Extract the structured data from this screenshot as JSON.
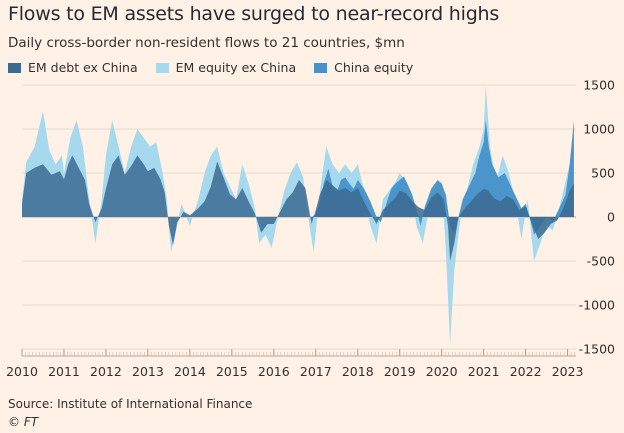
{
  "title": "Flows to EM assets have surged to near-record highs",
  "subtitle": "Daily cross-border non-resident flows to 21 countries, $mn",
  "source": "Source: Institute of International Finance",
  "credit": "© FT",
  "chart_data": {
    "type": "area",
    "title": "Flows to EM assets have surged to near-record highs",
    "subtitle": "Daily cross-border non-resident flows to 21 countries, $mn",
    "xlabel": "",
    "ylabel": "",
    "xlim": [
      2010.0,
      2023.2
    ],
    "ylim": [
      -1500,
      1500
    ],
    "yticks": [
      1500,
      1000,
      500,
      0,
      -500,
      -1000,
      -1500
    ],
    "ytick_labels": [
      "1500",
      "1000",
      "500",
      "0",
      "-500",
      "-1000",
      "-1500"
    ],
    "xticks": [
      2010,
      2011,
      2012,
      2013,
      2014,
      2015,
      2016,
      2017,
      2018,
      2019,
      2020,
      2021,
      2022,
      2023
    ],
    "xtick_labels": [
      "2010",
      "2011",
      "2012",
      "2013",
      "2014",
      "2015",
      "2016",
      "2017",
      "2018",
      "2019",
      "2020",
      "2021",
      "2022",
      "2023"
    ],
    "grid": true,
    "legend_position": "top",
    "series": [
      {
        "name": "EM debt ex China",
        "color": "#3B6A92",
        "points": [
          [
            2010.0,
            150
          ],
          [
            2010.1,
            500
          ],
          [
            2010.3,
            560
          ],
          [
            2010.5,
            600
          ],
          [
            2010.7,
            480
          ],
          [
            2010.9,
            520
          ],
          [
            2011.0,
            430
          ],
          [
            2011.1,
            600
          ],
          [
            2011.2,
            700
          ],
          [
            2011.35,
            560
          ],
          [
            2011.5,
            420
          ],
          [
            2011.6,
            150
          ],
          [
            2011.75,
            -60
          ],
          [
            2011.9,
            100
          ],
          [
            2012.0,
            320
          ],
          [
            2012.15,
            600
          ],
          [
            2012.3,
            700
          ],
          [
            2012.45,
            480
          ],
          [
            2012.6,
            580
          ],
          [
            2012.75,
            700
          ],
          [
            2012.9,
            600
          ],
          [
            2013.0,
            520
          ],
          [
            2013.15,
            560
          ],
          [
            2013.3,
            430
          ],
          [
            2013.4,
            280
          ],
          [
            2013.5,
            -100
          ],
          [
            2013.6,
            -320
          ],
          [
            2013.7,
            -60
          ],
          [
            2013.85,
            60
          ],
          [
            2014.0,
            20
          ],
          [
            2014.2,
            100
          ],
          [
            2014.35,
            180
          ],
          [
            2014.5,
            350
          ],
          [
            2014.65,
            630
          ],
          [
            2014.8,
            450
          ],
          [
            2014.95,
            260
          ],
          [
            2015.1,
            200
          ],
          [
            2015.25,
            330
          ],
          [
            2015.4,
            180
          ],
          [
            2015.55,
            40
          ],
          [
            2015.7,
            -180
          ],
          [
            2015.85,
            -80
          ],
          [
            2016.0,
            -80
          ],
          [
            2016.15,
            60
          ],
          [
            2016.3,
            200
          ],
          [
            2016.45,
            280
          ],
          [
            2016.6,
            420
          ],
          [
            2016.75,
            330
          ],
          [
            2016.9,
            -80
          ],
          [
            2017.0,
            80
          ],
          [
            2017.1,
            260
          ],
          [
            2017.25,
            420
          ],
          [
            2017.4,
            360
          ],
          [
            2017.55,
            300
          ],
          [
            2017.7,
            330
          ],
          [
            2017.85,
            280
          ],
          [
            2018.0,
            330
          ],
          [
            2018.15,
            170
          ],
          [
            2018.3,
            40
          ],
          [
            2018.45,
            -80
          ],
          [
            2018.6,
            80
          ],
          [
            2018.75,
            150
          ],
          [
            2018.9,
            220
          ],
          [
            2019.0,
            300
          ],
          [
            2019.15,
            270
          ],
          [
            2019.3,
            180
          ],
          [
            2019.45,
            110
          ],
          [
            2019.6,
            80
          ],
          [
            2019.75,
            220
          ],
          [
            2019.9,
            280
          ],
          [
            2020.05,
            200
          ],
          [
            2020.15,
            -100
          ],
          [
            2020.2,
            -500
          ],
          [
            2020.3,
            -300
          ],
          [
            2020.4,
            0
          ],
          [
            2020.55,
            100
          ],
          [
            2020.7,
            180
          ],
          [
            2020.85,
            260
          ],
          [
            2021.0,
            320
          ],
          [
            2021.1,
            300
          ],
          [
            2021.25,
            210
          ],
          [
            2021.4,
            180
          ],
          [
            2021.55,
            240
          ],
          [
            2021.7,
            200
          ],
          [
            2021.85,
            80
          ],
          [
            2022.0,
            120
          ],
          [
            2022.15,
            -80
          ],
          [
            2022.3,
            -250
          ],
          [
            2022.45,
            -180
          ],
          [
            2022.6,
            -80
          ],
          [
            2022.75,
            -40
          ],
          [
            2022.9,
            100
          ],
          [
            2023.05,
            300
          ],
          [
            2023.15,
            380
          ]
        ]
      },
      {
        "name": "EM equity ex China",
        "color": "#A7D9EE",
        "points": [
          [
            2010.0,
            200
          ],
          [
            2010.1,
            620
          ],
          [
            2010.3,
            800
          ],
          [
            2010.4,
            1000
          ],
          [
            2010.5,
            1200
          ],
          [
            2010.65,
            760
          ],
          [
            2010.8,
            600
          ],
          [
            2010.95,
            700
          ],
          [
            2011.0,
            500
          ],
          [
            2011.15,
            900
          ],
          [
            2011.3,
            1100
          ],
          [
            2011.45,
            800
          ],
          [
            2011.6,
            200
          ],
          [
            2011.75,
            -300
          ],
          [
            2011.9,
            200
          ],
          [
            2012.0,
            700
          ],
          [
            2012.15,
            1100
          ],
          [
            2012.3,
            800
          ],
          [
            2012.45,
            500
          ],
          [
            2012.6,
            800
          ],
          [
            2012.75,
            1000
          ],
          [
            2012.9,
            900
          ],
          [
            2013.05,
            800
          ],
          [
            2013.2,
            850
          ],
          [
            2013.35,
            500
          ],
          [
            2013.45,
            200
          ],
          [
            2013.55,
            -400
          ],
          [
            2013.65,
            -200
          ],
          [
            2013.8,
            150
          ],
          [
            2014.0,
            -100
          ],
          [
            2014.2,
            200
          ],
          [
            2014.35,
            500
          ],
          [
            2014.5,
            700
          ],
          [
            2014.65,
            800
          ],
          [
            2014.8,
            500
          ],
          [
            2014.95,
            350
          ],
          [
            2015.1,
            200
          ],
          [
            2015.25,
            600
          ],
          [
            2015.4,
            380
          ],
          [
            2015.55,
            100
          ],
          [
            2015.65,
            -300
          ],
          [
            2015.8,
            -200
          ],
          [
            2015.95,
            -350
          ],
          [
            2016.1,
            0
          ],
          [
            2016.25,
            300
          ],
          [
            2016.4,
            500
          ],
          [
            2016.55,
            620
          ],
          [
            2016.7,
            450
          ],
          [
            2016.85,
            -100
          ],
          [
            2016.95,
            -400
          ],
          [
            2017.1,
            300
          ],
          [
            2017.25,
            800
          ],
          [
            2017.4,
            600
          ],
          [
            2017.55,
            500
          ],
          [
            2017.7,
            600
          ],
          [
            2017.85,
            500
          ],
          [
            2018.0,
            600
          ],
          [
            2018.15,
            300
          ],
          [
            2018.3,
            -100
          ],
          [
            2018.45,
            -300
          ],
          [
            2018.6,
            200
          ],
          [
            2018.75,
            300
          ],
          [
            2018.9,
            400
          ],
          [
            2019.0,
            500
          ],
          [
            2019.15,
            400
          ],
          [
            2019.3,
            200
          ],
          [
            2019.4,
            -100
          ],
          [
            2019.55,
            -300
          ],
          [
            2019.7,
            100
          ],
          [
            2019.85,
            350
          ],
          [
            2020.0,
            400
          ],
          [
            2020.1,
            -400
          ],
          [
            2020.2,
            -1450
          ],
          [
            2020.3,
            -600
          ],
          [
            2020.45,
            0
          ],
          [
            2020.6,
            300
          ],
          [
            2020.75,
            600
          ],
          [
            2020.9,
            800
          ],
          [
            2021.0,
            1000
          ],
          [
            2021.05,
            1500
          ],
          [
            2021.15,
            800
          ],
          [
            2021.3,
            400
          ],
          [
            2021.45,
            700
          ],
          [
            2021.6,
            500
          ],
          [
            2021.75,
            200
          ],
          [
            2021.9,
            -250
          ],
          [
            2022.05,
            200
          ],
          [
            2022.2,
            -500
          ],
          [
            2022.35,
            -300
          ],
          [
            2022.5,
            -100
          ],
          [
            2022.65,
            -150
          ],
          [
            2022.8,
            100
          ],
          [
            2022.95,
            400
          ],
          [
            2023.05,
            600
          ],
          [
            2023.15,
            1050
          ]
        ]
      },
      {
        "name": "China equity",
        "color": "#4591C8",
        "points": [
          [
            2016.9,
            0
          ],
          [
            2017.0,
            30
          ],
          [
            2017.1,
            180
          ],
          [
            2017.2,
            400
          ],
          [
            2017.3,
            550
          ],
          [
            2017.4,
            350
          ],
          [
            2017.5,
            280
          ],
          [
            2017.6,
            420
          ],
          [
            2017.7,
            450
          ],
          [
            2017.8,
            380
          ],
          [
            2017.9,
            320
          ],
          [
            2018.0,
            420
          ],
          [
            2018.15,
            320
          ],
          [
            2018.3,
            180
          ],
          [
            2018.45,
            0
          ],
          [
            2018.55,
            -60
          ],
          [
            2018.7,
            180
          ],
          [
            2018.8,
            320
          ],
          [
            2018.9,
            380
          ],
          [
            2019.0,
            420
          ],
          [
            2019.1,
            460
          ],
          [
            2019.2,
            360
          ],
          [
            2019.3,
            250
          ],
          [
            2019.4,
            80
          ],
          [
            2019.5,
            -100
          ],
          [
            2019.6,
            120
          ],
          [
            2019.75,
            320
          ],
          [
            2019.9,
            420
          ],
          [
            2020.0,
            380
          ],
          [
            2020.1,
            250
          ],
          [
            2020.2,
            -100
          ],
          [
            2020.3,
            -200
          ],
          [
            2020.4,
            0
          ],
          [
            2020.5,
            200
          ],
          [
            2020.6,
            300
          ],
          [
            2020.7,
            400
          ],
          [
            2020.8,
            500
          ],
          [
            2020.9,
            700
          ],
          [
            2021.0,
            850
          ],
          [
            2021.05,
            1100
          ],
          [
            2021.12,
            800
          ],
          [
            2021.2,
            600
          ],
          [
            2021.35,
            450
          ],
          [
            2021.5,
            500
          ],
          [
            2021.6,
            400
          ],
          [
            2021.7,
            300
          ],
          [
            2021.8,
            200
          ],
          [
            2021.9,
            100
          ],
          [
            2022.0,
            150
          ],
          [
            2022.1,
            0
          ],
          [
            2022.2,
            -200
          ],
          [
            2022.35,
            -100
          ],
          [
            2022.5,
            0
          ],
          [
            2022.65,
            -50
          ],
          [
            2022.8,
            100
          ],
          [
            2022.95,
            250
          ],
          [
            2023.05,
            600
          ],
          [
            2023.15,
            1100
          ]
        ]
      }
    ]
  }
}
